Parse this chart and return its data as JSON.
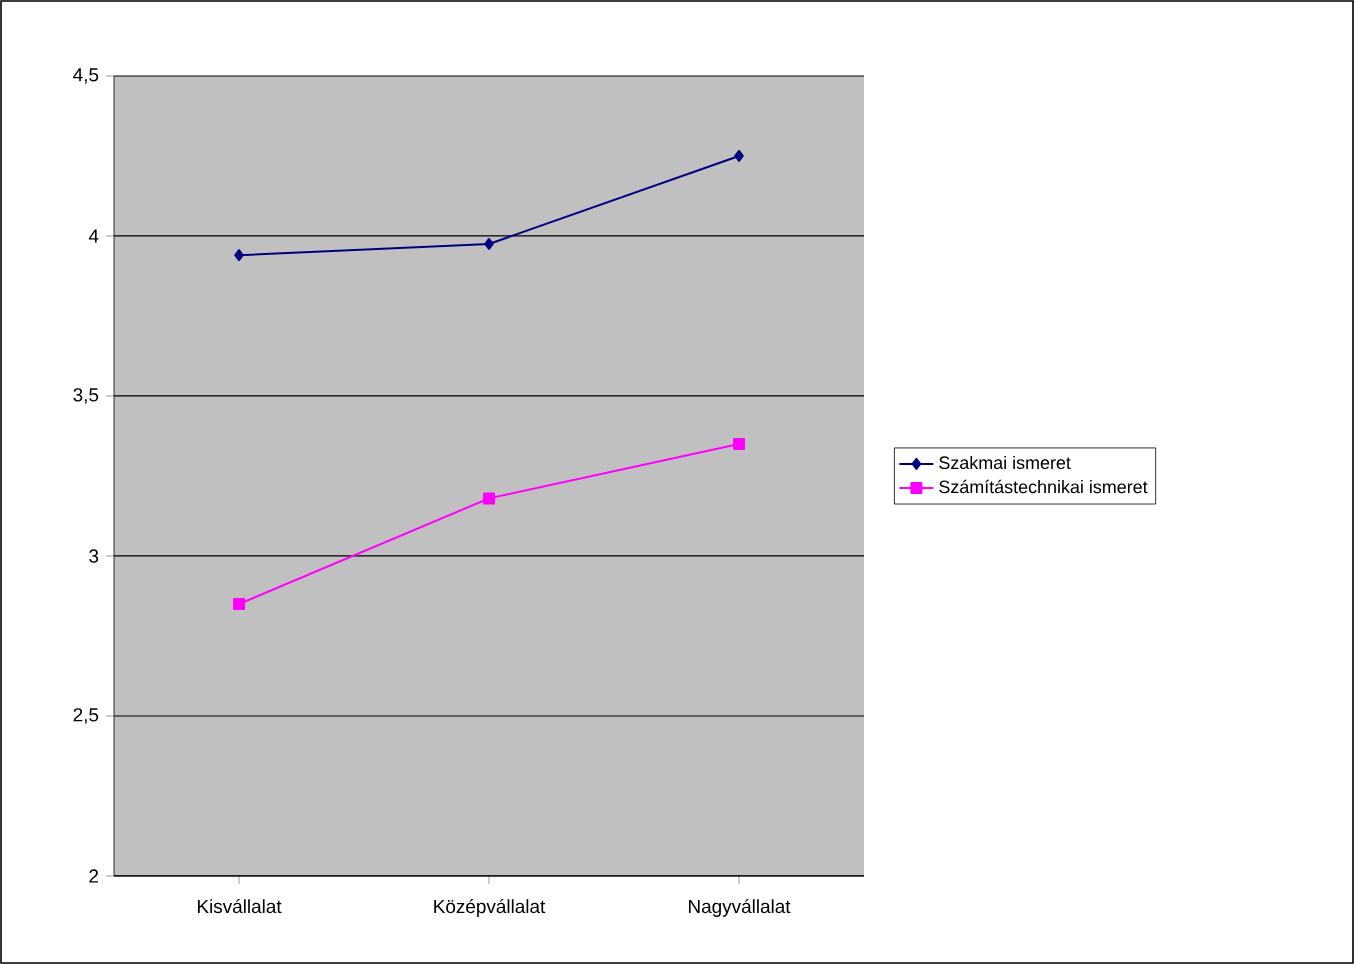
{
  "chart_data": {
    "type": "line",
    "categories": [
      "Kisvállalat",
      "Középvállalat",
      "Nagyvállalat"
    ],
    "series": [
      {
        "name": "Szakmai ismeret",
        "color": "#000080",
        "marker": "diamond",
        "values": [
          3.94,
          3.975,
          4.25
        ]
      },
      {
        "name": "Számítástechnikai ismeret",
        "color": "#ff00ff",
        "marker": "square",
        "values": [
          2.85,
          3.18,
          3.35
        ]
      }
    ],
    "ylim": [
      2,
      4.5
    ],
    "yticks": [
      {
        "value": 2,
        "label": "2"
      },
      {
        "value": 2.5,
        "label": "2,5"
      },
      {
        "value": 3,
        "label": "3"
      },
      {
        "value": 3.5,
        "label": "3,5"
      },
      {
        "value": 4,
        "label": "4"
      },
      {
        "value": 4.5,
        "label": "4,5"
      }
    ],
    "grid": "y",
    "legend": "right"
  }
}
